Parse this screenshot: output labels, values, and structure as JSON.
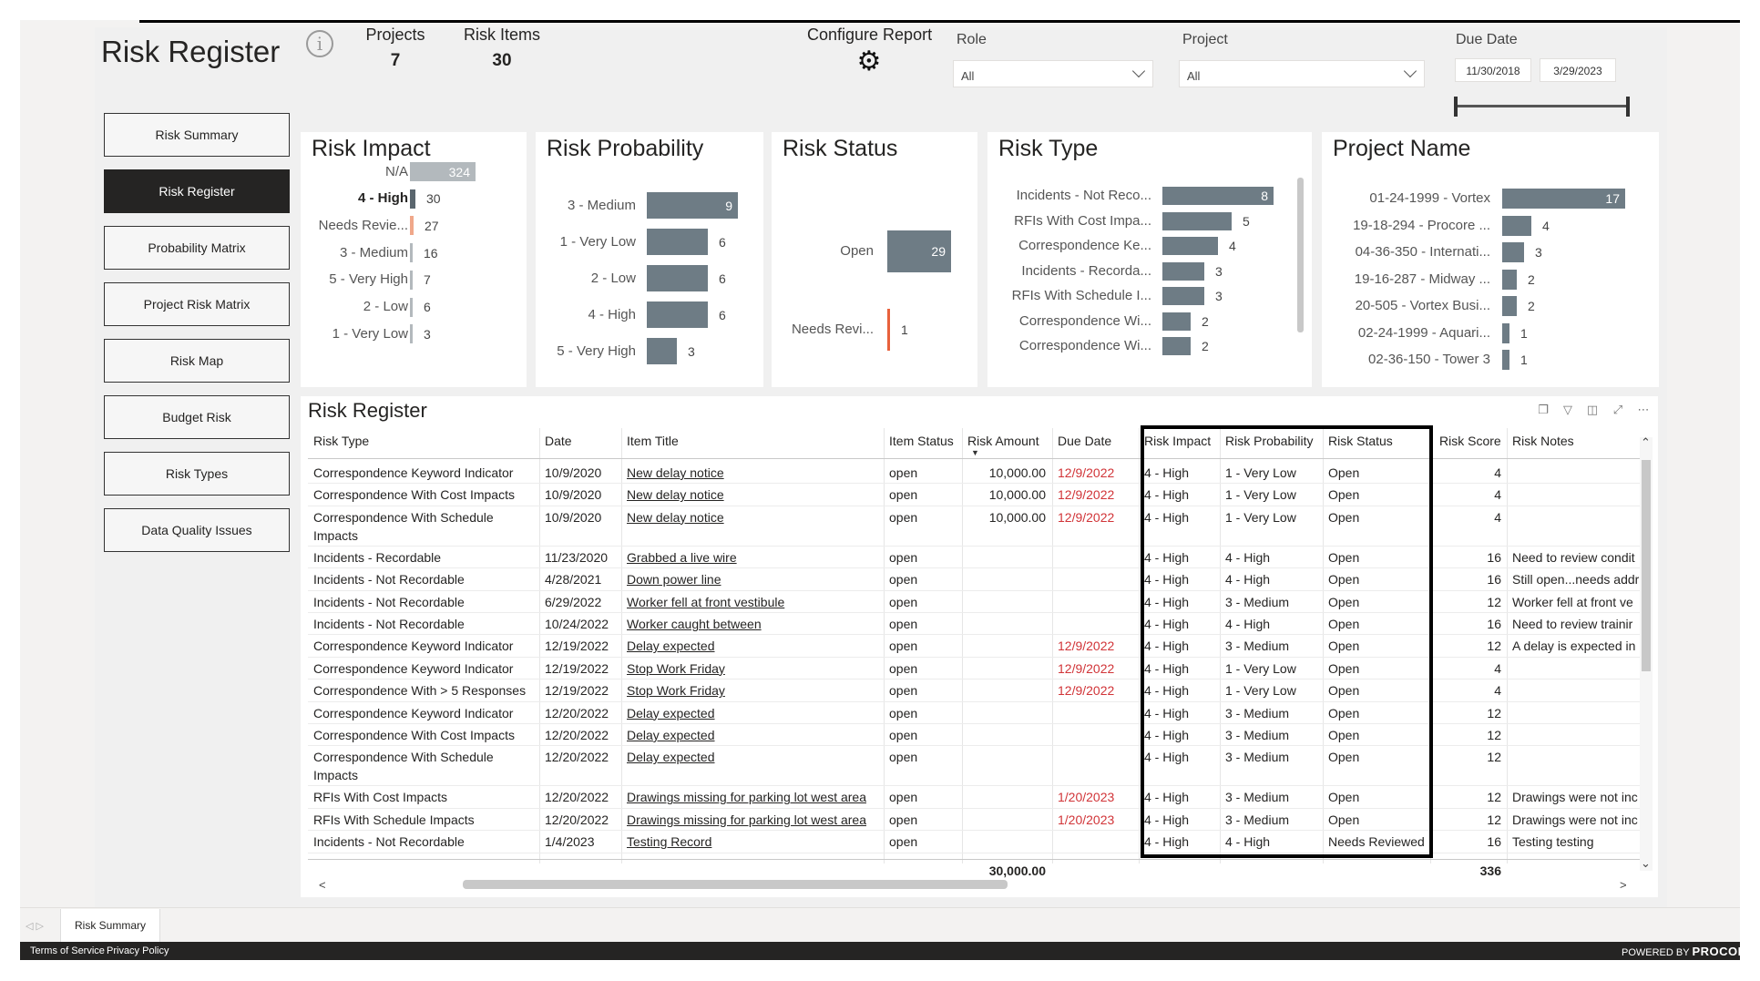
{
  "header": {
    "title": "Risk Register",
    "kpis": [
      {
        "label": "Projects",
        "value": "7"
      },
      {
        "label": "Risk Items",
        "value": "30"
      }
    ],
    "configure_label": "Configure Report"
  },
  "slicers": {
    "role": {
      "label": "Role",
      "value": "All"
    },
    "project": {
      "label": "Project",
      "value": "All"
    },
    "due_date": {
      "label": "Due Date",
      "start": "11/30/2018",
      "end": "3/29/2023"
    }
  },
  "nav": [
    {
      "label": "Risk Summary",
      "active": false
    },
    {
      "label": "Risk Register",
      "active": true
    },
    {
      "label": "Probability Matrix",
      "active": false
    },
    {
      "label": "Project Risk Matrix",
      "active": false
    },
    {
      "label": "Risk Map",
      "active": false
    },
    {
      "label": "Budget Risk",
      "active": false
    },
    {
      "label": "Risk Types",
      "active": false
    },
    {
      "label": "Data Quality Issues",
      "active": false
    }
  ],
  "colors": {
    "bar": "#6e7c85",
    "bar_na": "#b3b9bd",
    "bar_orange": "#f0a88a",
    "accent_red": "#d13438",
    "status_line": "#e8613c"
  },
  "chart_data": [
    {
      "type": "bar",
      "title": "Risk Impact",
      "categories": [
        "N/A",
        "4 - High",
        "Needs Revie...",
        "3 - Medium",
        "5 - Very High",
        "2 - Low",
        "1 - Very Low"
      ],
      "values": [
        324,
        30,
        27,
        16,
        7,
        6,
        3
      ]
    },
    {
      "type": "bar",
      "title": "Risk Probability",
      "categories": [
        "3 - Medium",
        "1 - Very Low",
        "2 - Low",
        "4 - High",
        "5 - Very High"
      ],
      "values": [
        9,
        6,
        6,
        6,
        3
      ]
    },
    {
      "type": "bar",
      "title": "Risk Status",
      "categories": [
        "Open",
        "Needs Revi..."
      ],
      "values": [
        29,
        1
      ]
    },
    {
      "type": "bar",
      "title": "Risk Type",
      "categories": [
        "Incidents - Not Reco...",
        "RFIs With Cost Impa...",
        "Correspondence Ke...",
        "Incidents - Recorda...",
        "RFIs With Schedule I...",
        "Correspondence Wi...",
        "Correspondence Wi..."
      ],
      "values": [
        8,
        5,
        4,
        3,
        3,
        2,
        2
      ]
    },
    {
      "type": "bar",
      "title": "Project Name",
      "categories": [
        "01-24-1999 - Vortex",
        "19-18-294 - Procore ...",
        "04-36-350 - Internati...",
        "19-16-287 - Midway ...",
        "20-505 - Vortex Busi...",
        "02-24-1999 - Aquari...",
        "02-36-150 - Tower 3"
      ],
      "values": [
        17,
        4,
        3,
        2,
        2,
        1,
        1
      ]
    }
  ],
  "table": {
    "title": "Risk Register",
    "columns": [
      "Risk Type",
      "Date",
      "Item Title",
      "Item Status",
      "Risk Amount",
      "Due Date",
      "Risk Impact",
      "Risk Probability",
      "Risk Status",
      "Risk Score",
      "Risk Notes"
    ],
    "rows": [
      [
        "Correspondence Keyword Indicator",
        "10/9/2020",
        "New delay notice",
        "open",
        "10,000.00",
        "12/9/2022",
        "4 - High",
        "1 - Very Low",
        "Open",
        "4",
        ""
      ],
      [
        "Correspondence With Cost Impacts",
        "10/9/2020",
        "New delay notice",
        "open",
        "10,000.00",
        "12/9/2022",
        "4 - High",
        "1 - Very Low",
        "Open",
        "4",
        ""
      ],
      [
        "Correspondence With Schedule Impacts",
        "10/9/2020",
        "New delay notice",
        "open",
        "10,000.00",
        "12/9/2022",
        "4 - High",
        "1 - Very Low",
        "Open",
        "4",
        ""
      ],
      [
        "Incidents - Recordable",
        "11/23/2020",
        "Grabbed a live wire",
        "open",
        "",
        "",
        "4 - High",
        "4 - High",
        "Open",
        "16",
        "Need to review condit"
      ],
      [
        "Incidents - Not Recordable",
        "4/28/2021",
        "Down power line",
        "open",
        "",
        "",
        "4 - High",
        "4 - High",
        "Open",
        "16",
        "Still open...needs addr"
      ],
      [
        "Incidents - Not Recordable",
        "6/29/2022",
        "Worker fell at front vestibule",
        "open",
        "",
        "",
        "4 - High",
        "3 - Medium",
        "Open",
        "12",
        "Worker fell at front ve"
      ],
      [
        "Incidents - Not Recordable",
        "10/24/2022",
        "Worker caught between",
        "open",
        "",
        "",
        "4 - High",
        "4 - High",
        "Open",
        "16",
        "Need to review trainir"
      ],
      [
        "Correspondence Keyword Indicator",
        "12/19/2022",
        "Delay expected",
        "open",
        "",
        "12/9/2022",
        "4 - High",
        "3 - Medium",
        "Open",
        "12",
        "A delay is expected in"
      ],
      [
        "Correspondence Keyword Indicator",
        "12/19/2022",
        "Stop Work Friday",
        "open",
        "",
        "12/9/2022",
        "4 - High",
        "1 - Very Low",
        "Open",
        "4",
        ""
      ],
      [
        "Correspondence With > 5 Responses",
        "12/19/2022",
        "Stop Work Friday",
        "open",
        "",
        "12/9/2022",
        "4 - High",
        "1 - Very Low",
        "Open",
        "4",
        ""
      ],
      [
        "Correspondence Keyword Indicator",
        "12/20/2022",
        "Delay expected",
        "open",
        "",
        "",
        "4 - High",
        "3 - Medium",
        "Open",
        "12",
        ""
      ],
      [
        "Correspondence With Cost Impacts",
        "12/20/2022",
        "Delay expected",
        "open",
        "",
        "",
        "4 - High",
        "3 - Medium",
        "Open",
        "12",
        ""
      ],
      [
        "Correspondence With Schedule Impacts",
        "12/20/2022",
        "Delay expected",
        "open",
        "",
        "",
        "4 - High",
        "3 - Medium",
        "Open",
        "12",
        ""
      ],
      [
        "RFIs With Cost Impacts",
        "12/20/2022",
        "Drawings missing for parking lot west area",
        "open",
        "",
        "1/20/2023",
        "4 - High",
        "3 - Medium",
        "Open",
        "12",
        "Drawings were not inc"
      ],
      [
        "RFIs With Schedule Impacts",
        "12/20/2022",
        "Drawings missing for parking lot west area",
        "open",
        "",
        "1/20/2023",
        "4 - High",
        "3 - Medium",
        "Open",
        "12",
        "Drawings were not inc"
      ],
      [
        "Incidents - Not Recordable",
        "1/4/2023",
        "Testing Record",
        "open",
        "",
        "",
        "4 - High",
        "4 - High",
        "Needs Reviewed",
        "16",
        "Testing testing"
      ]
    ],
    "totals": {
      "risk_amount": "30,000.00",
      "risk_score": "336"
    }
  },
  "bottom": {
    "page_tab": "Risk Summary",
    "terms": "Terms of Service",
    "privacy": "Privacy Policy",
    "powered_by": "POWERED BY",
    "brand": "PROCORE"
  }
}
